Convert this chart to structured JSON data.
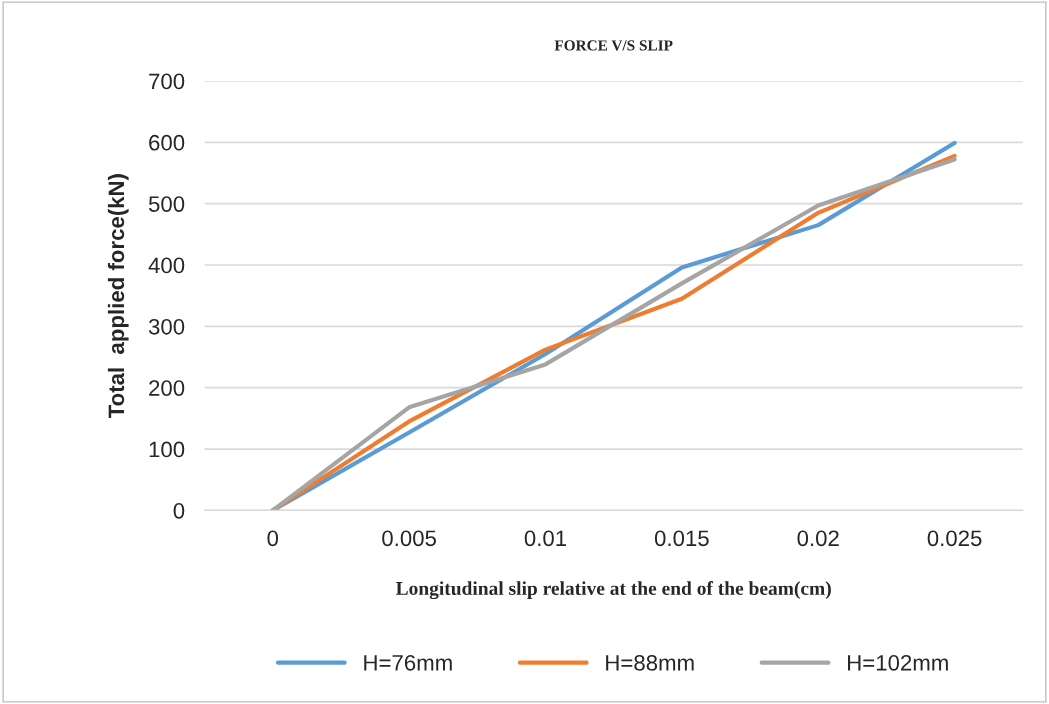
{
  "chart_data": {
    "type": "line",
    "title": "FORCE V/S SLIP",
    "xlabel": "Longitudinal slip relative at the end of the beam(cm)",
    "ylabel": "Total  applied force(kN)",
    "categories": [
      "0",
      "0.005",
      "0.01",
      "0.015",
      "0.02",
      "0.025"
    ],
    "series": [
      {
        "name": "H=76mm",
        "color": "#5b9bd5",
        "values": [
          0,
          127,
          255,
          396,
          465,
          599
        ]
      },
      {
        "name": "H=88mm",
        "color": "#ed7d31",
        "values": [
          0,
          145,
          262,
          345,
          485,
          578
        ]
      },
      {
        "name": "H=102mm",
        "color": "#a5a5a5",
        "values": [
          0,
          168,
          238,
          370,
          497,
          572
        ]
      }
    ],
    "ylim": [
      0,
      700
    ],
    "yticks": [
      0,
      100,
      200,
      300,
      400,
      500,
      600,
      700
    ],
    "grid": "y",
    "legend": "bottom",
    "marker": "none",
    "line_style": "solid"
  }
}
